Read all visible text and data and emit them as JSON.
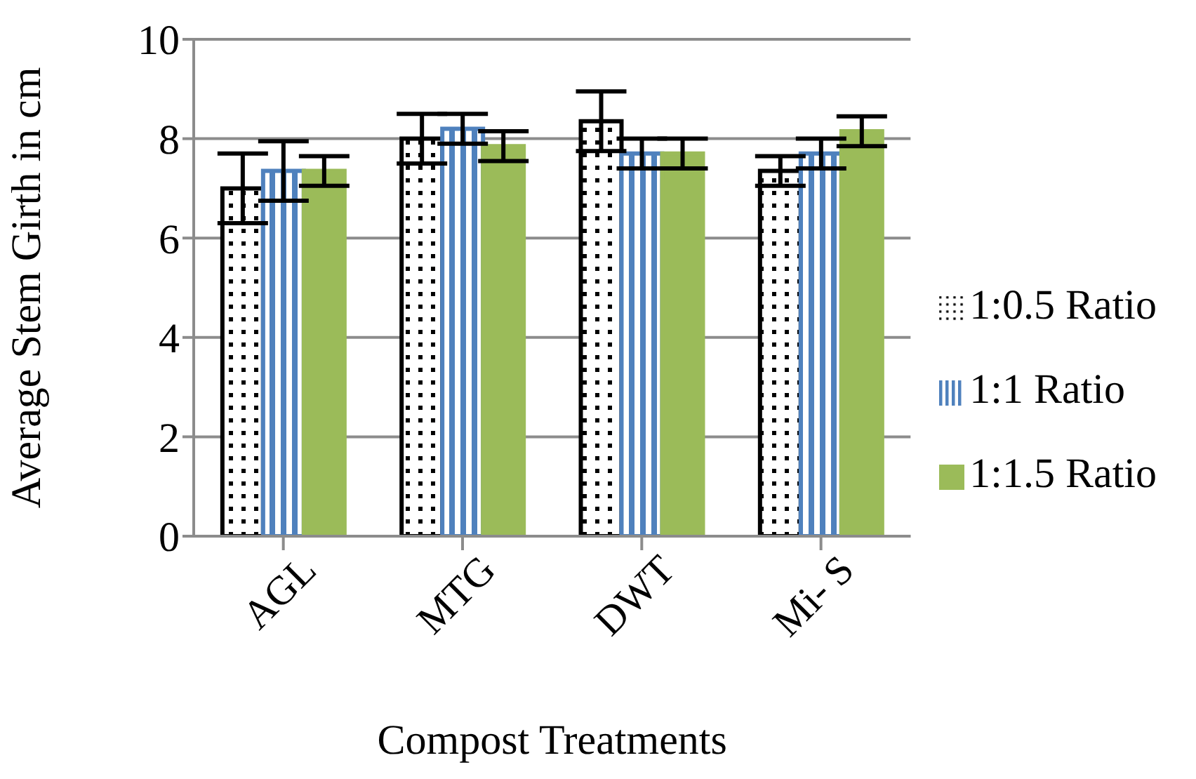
{
  "chart_data": {
    "type": "bar",
    "xlabel": "Compost Treatments",
    "ylabel": "Average Stem Girth in cm",
    "categories": [
      "AGL",
      "MTG",
      "DWT",
      "Mi- S"
    ],
    "series": [
      {
        "name": "1:0.5 Ratio",
        "color": "#000000",
        "values": [
          7.0,
          8.0,
          8.35,
          7.35
        ],
        "errors": [
          0.7,
          0.5,
          0.6,
          0.3
        ]
      },
      {
        "name": "1:1 Ratio",
        "color": "#4f81bd",
        "values": [
          7.35,
          8.2,
          7.7,
          7.7
        ],
        "errors": [
          0.6,
          0.3,
          0.3,
          0.3
        ]
      },
      {
        "name": "1:1.5 Ratio",
        "color": "#9bbb59",
        "values": [
          7.35,
          7.85,
          7.7,
          8.15
        ],
        "errors": [
          0.3,
          0.3,
          0.3,
          0.3
        ]
      }
    ],
    "ylim": [
      0,
      10
    ],
    "yticks": [
      0,
      2,
      4,
      6,
      8,
      10
    ],
    "grid": "y",
    "legend": "right"
  }
}
